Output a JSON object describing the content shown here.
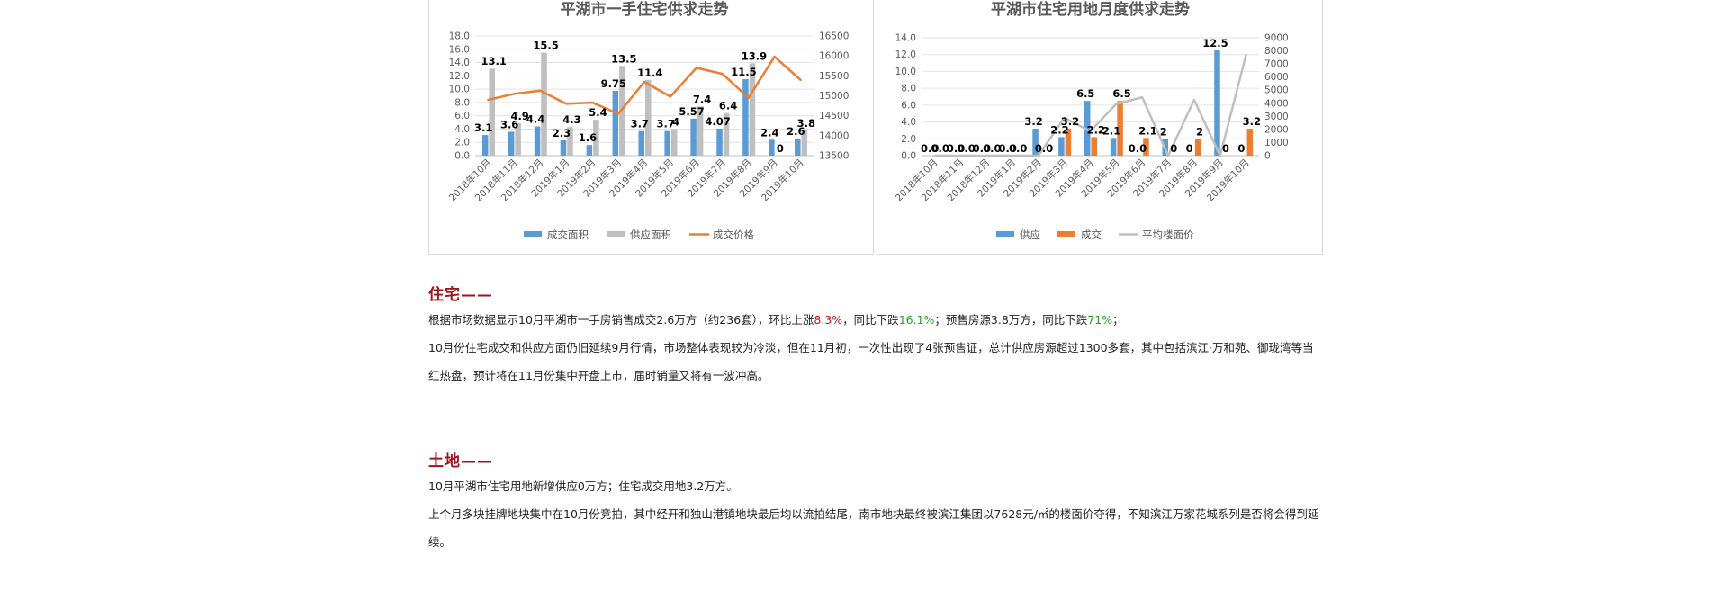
{
  "chart_data": [
    {
      "type": "bar",
      "title": "平湖市一手住宅供求走势",
      "categories": [
        "2018年10月",
        "2018年11月",
        "2018年12月",
        "2019年1月",
        "2019年2月",
        "2019年3月",
        "2019年4月",
        "2019年5月",
        "2019年6月",
        "2019年7月",
        "2019年8月",
        "2019年9月",
        "2019年10月"
      ],
      "series": [
        {
          "name": "成交面积",
          "kind": "bar",
          "axis": "left",
          "color": "#5b9bd5",
          "values": [
            3.1,
            3.6,
            4.4,
            2.3,
            1.6,
            9.75,
            3.7,
            3.7,
            5.57,
            4.07,
            11.5,
            2.4,
            2.6
          ],
          "labels": [
            "3.1",
            "3.6",
            "4.4",
            "2.3",
            "1.6",
            "9.75",
            "3.7",
            "3.7",
            "5.57",
            "4.07",
            "11.5",
            "2.4",
            "2.6"
          ]
        },
        {
          "name": "供应面积",
          "kind": "bar",
          "axis": "left",
          "color": "#bfbfbf",
          "values": [
            13.1,
            4.9,
            15.5,
            4.3,
            5.4,
            13.5,
            11.4,
            4,
            7.4,
            6.4,
            13.9,
            0,
            3.8
          ],
          "labels": [
            "13.1",
            "4.9",
            "15.5",
            "4.3",
            "5.4",
            "13.5",
            "11.4",
            "4",
            "7.4",
            "6.4",
            "13.9",
            "0",
            "3.8"
          ]
        },
        {
          "name": "成交价格",
          "kind": "line",
          "axis": "right",
          "color": "#ed7d31",
          "values": [
            14900,
            15050,
            15130,
            14800,
            14830,
            14550,
            15350,
            14980,
            15700,
            15550,
            14950,
            15980,
            15400
          ]
        }
      ],
      "y_left": {
        "min": 0,
        "max": 18,
        "ticks": [
          "0.0",
          "2.0",
          "4.0",
          "6.0",
          "8.0",
          "10.0",
          "12.0",
          "14.0",
          "16.0",
          "18.0"
        ]
      },
      "y_right": {
        "min": 13500,
        "max": 16500,
        "ticks": [
          "13500",
          "14000",
          "14500",
          "15000",
          "15500",
          "16000",
          "16500"
        ]
      },
      "legend": "bottom",
      "grid": true
    },
    {
      "type": "bar",
      "title": "平湖市住宅用地月度供求走势",
      "categories": [
        "2018年10月",
        "2018年11月",
        "2018年12月",
        "2019年1月",
        "2019年2月",
        "2019年3月",
        "2019年4月",
        "2019年5月",
        "2019年6月",
        "2019年7月",
        "2019年8月",
        "2019年9月",
        "2019年10月"
      ],
      "series": [
        {
          "name": "供应",
          "kind": "bar",
          "axis": "left",
          "color": "#5b9bd5",
          "values": [
            0,
            0,
            0,
            0,
            3.2,
            2.2,
            6.5,
            2.1,
            0,
            2,
            0,
            12.5,
            0
          ],
          "labels": [
            "0.0",
            "0.0",
            "0.0",
            "0.0",
            "3.2",
            "2.2",
            "6.5",
            "2.1",
            "0.0",
            "2",
            "0",
            "12.5",
            "0"
          ]
        },
        {
          "name": "成交",
          "kind": "bar",
          "axis": "left",
          "color": "#ed7d31",
          "values": [
            0,
            0,
            0,
            0,
            0,
            3.2,
            2.2,
            6.5,
            2.1,
            0,
            2,
            0,
            3.2
          ],
          "labels": [
            "0.0",
            "0.0",
            "0.0",
            "0.0",
            "0.0",
            "3.2",
            "2.2",
            "6.5",
            "2.1",
            "0",
            "2",
            "0",
            "3.2"
          ]
        },
        {
          "name": "平均楼面价",
          "kind": "line",
          "axis": "right",
          "color": "#bfbfbf",
          "values": [
            0,
            0,
            0,
            0,
            0,
            2900,
            1850,
            3950,
            4450,
            0,
            4250,
            0,
            7700
          ]
        }
      ],
      "y_left": {
        "min": 0,
        "max": 14,
        "ticks": [
          "0.0",
          "2.0",
          "4.0",
          "6.0",
          "8.0",
          "10.0",
          "12.0",
          "14.0"
        ]
      },
      "y_right": {
        "min": 0,
        "max": 9000,
        "ticks": [
          "0",
          "1000",
          "2000",
          "3000",
          "4000",
          "5000",
          "6000",
          "7000",
          "8000",
          "9000"
        ]
      },
      "legend": "bottom",
      "grid": true
    }
  ],
  "sections": {
    "housing": {
      "title": "住宅——",
      "line1": {
        "p1": "根据市场数据显示10月平湖市一手房销售成交2.6万方（约236套），环比上涨",
        "v1": "8.3%",
        "p2": "，同比下跌",
        "v2": "16.1%",
        "p3": "；预售房源3.8万方，同比下跌",
        "v3": "71%",
        "p4": "；"
      },
      "line2": "10月份住宅成交和供应方面仍旧延续9月行情，市场整体表现较为冷淡，但在11月初，一次性出现了4张预售证，总计供应房源超过1300多套，其中包括滨江·万和苑、御珑湾等当红热盘，预计将在11月份集中开盘上市，届时销量又将有一波冲高。"
    },
    "land": {
      "title": "土地——",
      "line1": "10月平湖市住宅用地新增供应0万方；住宅成交用地3.2万方。",
      "line2": "上个月多块挂牌地块集中在10月份竞拍，其中经开和独山港镇地块最后均以流拍结尾，南市地块最终被滨江集团以7628元/㎡的楼面价夺得，不知滨江万家花城系列是否将会得到延续。"
    }
  }
}
